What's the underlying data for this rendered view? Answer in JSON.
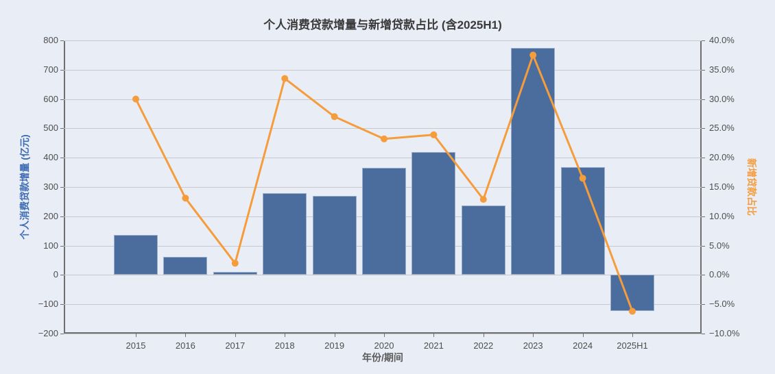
{
  "title": "个人消费贷款增量与新增贷款占比 (含2025H1)",
  "chart_data": {
    "type": "bar",
    "subtype": "bar+line dual-axis",
    "title": "个人消费贷款增量与新增贷款占比 (含2025H1)",
    "categories": [
      "2015",
      "2016",
      "2017",
      "2018",
      "2019",
      "2020",
      "2021",
      "2022",
      "2023",
      "2024",
      "2025H1"
    ],
    "series": [
      {
        "name": "个人消费贷款增量",
        "type": "bar",
        "axis": "left",
        "unit": "亿元",
        "values": [
          137,
          62,
          11,
          278,
          270,
          365,
          418,
          237,
          775,
          367,
          -124
        ]
      },
      {
        "name": "新增贷款占比",
        "type": "line",
        "axis": "right",
        "unit": "%",
        "values": [
          30.0,
          13.1,
          2.0,
          33.5,
          27.0,
          23.2,
          23.9,
          12.9,
          37.5,
          16.5,
          -6.2
        ]
      }
    ],
    "xlabel": "年份/期间",
    "ylabel_left": "个人消费贷款增量 (亿元)",
    "ylabel_right": "新增贷款占比",
    "ylim_left": [
      -200,
      800
    ],
    "ylim_right": [
      -10,
      40
    ],
    "yticks_left": [
      "800",
      "700",
      "600",
      "500",
      "400",
      "300",
      "200",
      "100",
      "0",
      "−100",
      "−200"
    ],
    "yticks_right": [
      "40.0%",
      "35.0%",
      "30.0%",
      "25.0%",
      "20.0%",
      "15.0%",
      "10.0%",
      "5.0%",
      "0.0%",
      "−5.0%",
      "−10.0%"
    ],
    "grid": true,
    "legend": "none"
  },
  "colors": {
    "background": "#e9edf6",
    "bar": "#4a6d9e",
    "line": "#f59c3c",
    "grid": "#c7c9cc",
    "spine": "#6f6f6f",
    "tick_label": "#4d4d4d",
    "title": "#3a3a3a",
    "left_axis_label": "#3d6cb4",
    "right_axis_label": "#f59c3c"
  }
}
